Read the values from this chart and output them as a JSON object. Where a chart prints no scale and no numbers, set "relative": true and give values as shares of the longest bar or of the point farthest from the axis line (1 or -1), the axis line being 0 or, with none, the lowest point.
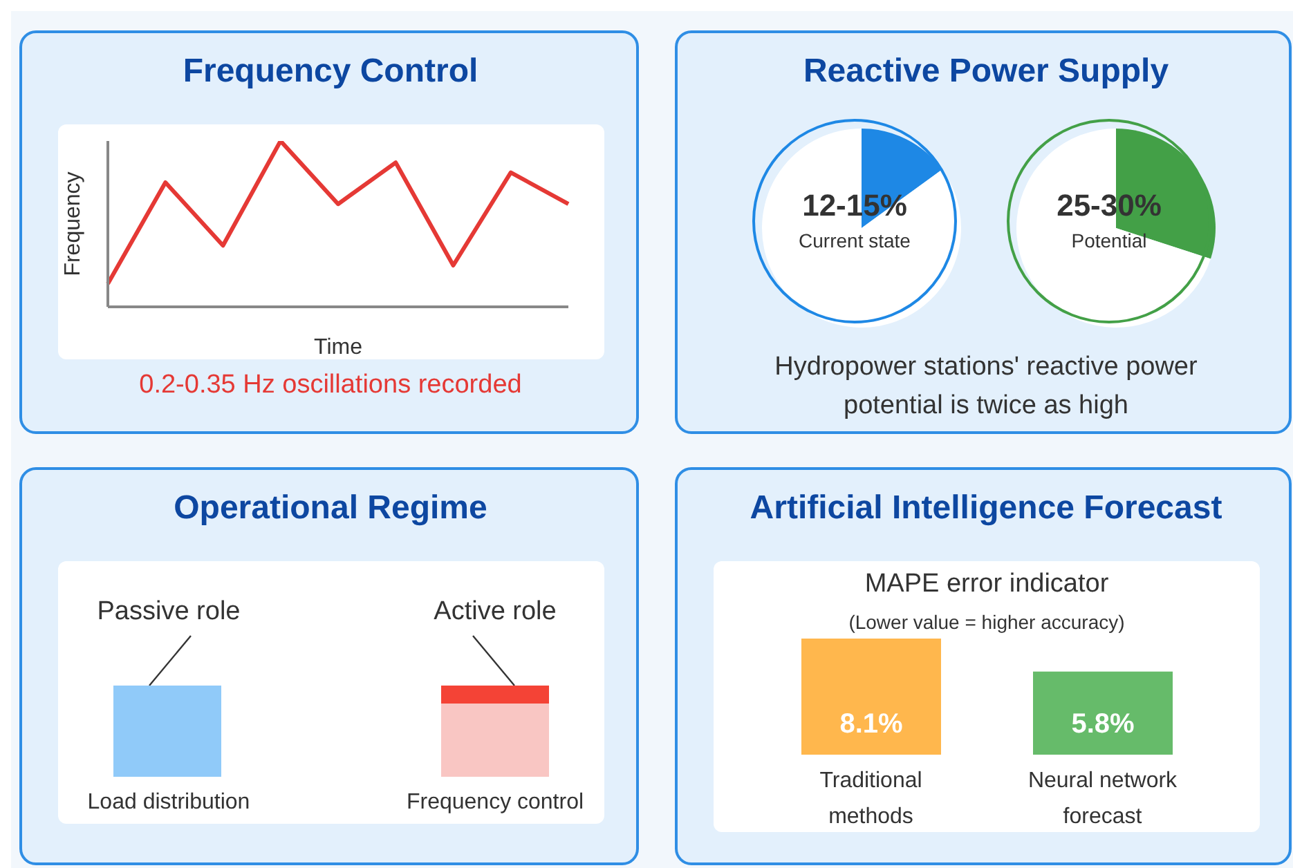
{
  "chart_data": [
    {
      "type": "line",
      "title": "Frequency Control",
      "xlabel": "Time",
      "ylabel": "Frequency",
      "relative": true,
      "categories": [
        null,
        null,
        null,
        null,
        null,
        null,
        null,
        null,
        null
      ],
      "series": [
        {
          "color": "#e53935",
          "values": [
            0.14,
            0.75,
            0.37,
            1,
            0.62,
            0.87,
            0.25,
            0.81,
            0.62
          ]
        }
      ],
      "marker": "none",
      "annotations": [
        "0.2-0.35 Hz oscillations recorded"
      ]
    },
    {
      "type": "pie",
      "title": "Reactive Power Supply",
      "categories": [
        null,
        null
      ],
      "values": [
        15,
        85
      ],
      "colors": [
        "#1e88e5",
        "#ffffff"
      ],
      "annotations": [
        "12-15%",
        "Current state"
      ]
    },
    {
      "type": "pie",
      "categories": [
        null,
        null
      ],
      "values": [
        30,
        70
      ],
      "colors": [
        "#43a047",
        "#ffffff"
      ],
      "annotations": [
        "25-30%",
        "Potential",
        "Hydropower stations' reactive power potential is twice as high"
      ]
    },
    {
      "type": "other",
      "title": "Operational Regime",
      "annotations": [
        "Passive role",
        "Active role",
        "Load distribution",
        "Frequency control"
      ]
    },
    {
      "type": "bar",
      "title": "Artificial Intelligence Forecast",
      "subtitle": "MAPE error indicator",
      "annotations": [
        "(Lower value = higher accuracy)"
      ],
      "categories": [
        "Traditional methods",
        "Neural network forecast"
      ],
      "values": [
        8.1,
        5.8
      ],
      "colors": [
        "#ffb74d",
        "#66bb6a"
      ],
      "value_labels": [
        "8.1%",
        "5.8%"
      ]
    }
  ]
}
